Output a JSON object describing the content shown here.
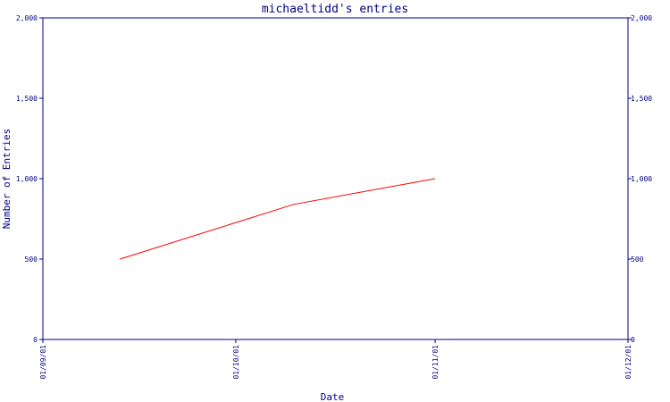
{
  "chart_data": {
    "type": "line",
    "title": "michaeltidd's entries",
    "xlabel": "Date",
    "ylabel": "Number of Entries",
    "x_ticks": [
      "01/09/01",
      "01/10/01",
      "01/11/01",
      "01/12/01"
    ],
    "y_ticks": [
      "0",
      "500",
      "1,000",
      "1,500",
      "2,000"
    ],
    "y_tick_values": [
      0,
      500,
      1000,
      1500,
      2000
    ],
    "ylim": [
      0,
      2000
    ],
    "xlim": [
      "2001-09-01",
      "2001-12-01"
    ],
    "grid": false,
    "series": [
      {
        "x": [
          "2001-09-13",
          "2001-10-10",
          "2001-11-01"
        ],
        "y": [
          500,
          840,
          1000
        ],
        "color": "#ff0000"
      }
    ]
  },
  "colors": {
    "axis": "#000080",
    "text": "#000080",
    "line": "#ff0000",
    "background": "#ffffff"
  }
}
